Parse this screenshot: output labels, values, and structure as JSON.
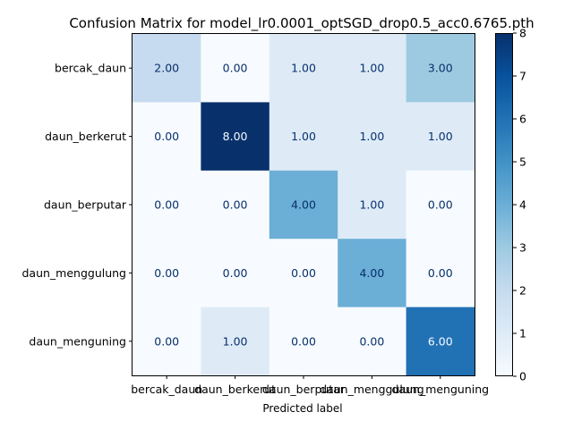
{
  "chart_data": {
    "type": "heatmap",
    "title": "Confusion Matrix for model_lr0.0001_optSGD_drop0.5_acc0.6765.pth",
    "xlabel": "Predicted label",
    "ylabel": "",
    "row_labels": [
      "bercak_daun",
      "daun_berkerut",
      "daun_berputar",
      "daun_menggulung",
      "daun_menguning"
    ],
    "col_labels": [
      "bercak_daun",
      "daun_berkerut",
      "daun_berputar",
      "daun_menggulung",
      "daun_menguning"
    ],
    "values": [
      [
        2,
        0,
        1,
        1,
        3
      ],
      [
        0,
        8,
        1,
        1,
        1
      ],
      [
        0,
        0,
        4,
        1,
        0
      ],
      [
        0,
        0,
        0,
        4,
        0
      ],
      [
        0,
        1,
        0,
        0,
        6
      ]
    ],
    "cell_format": "2 decimals",
    "colormap": "Blues",
    "colorbar": {
      "min": 0,
      "max": 8,
      "ticks": [
        0,
        1,
        2,
        3,
        4,
        5,
        6,
        7,
        8
      ]
    },
    "colors": {
      "low": "#f7fbff",
      "high": "#08306b",
      "dark_text": "#08306b",
      "light_text": "#f7fbff"
    }
  }
}
